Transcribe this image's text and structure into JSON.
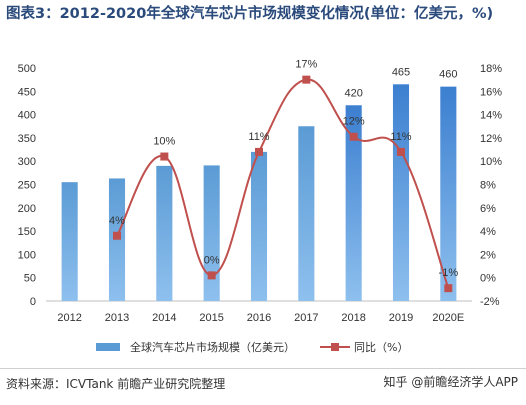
{
  "title": "图表3：2012-2020年全球汽车芯片市场规模变化情况(单位：亿美元，%)",
  "source": "资料来源：ICVTank 前瞻产业研究院整理",
  "watermark": "知乎 @前瞻经济学人APP",
  "colors": {
    "bar": "#5b9bd5",
    "bar_top": "#3c7fd0",
    "line": "#c0504d",
    "marker": "#c0504d"
  },
  "chart_data": {
    "type": "bar",
    "categories": [
      "2012",
      "2013",
      "2014",
      "2015",
      "2016",
      "2017",
      "2018",
      "2019",
      "2020E"
    ],
    "series": [
      {
        "name": "全球汽车芯片市场规模（亿美元）",
        "type": "bar",
        "axis": "left",
        "values": [
          255,
          263,
          290,
          291,
          320,
          375,
          420,
          465,
          460
        ],
        "labels": [
          "",
          "",
          "",
          "",
          "",
          "",
          "420",
          "465",
          "460"
        ]
      },
      {
        "name": "同比（%）",
        "type": "line",
        "axis": "right",
        "values": [
          null,
          3.6,
          10.4,
          0.2,
          10.8,
          17,
          12.1,
          10.8,
          -0.9
        ],
        "labels": [
          "",
          "4%",
          "10%",
          "0%",
          "11%",
          "17%",
          "12%",
          "11%",
          "-1%"
        ]
      }
    ],
    "y_left": {
      "min": 0,
      "max": 500,
      "ticks": [
        0,
        50,
        100,
        150,
        200,
        250,
        300,
        350,
        400,
        450,
        500
      ]
    },
    "y_right": {
      "min": -2,
      "max": 18,
      "ticks": [
        "-2%",
        "0%",
        "2%",
        "4%",
        "6%",
        "8%",
        "10%",
        "12%",
        "14%",
        "16%",
        "18%"
      ]
    },
    "legend": "bottom",
    "grid": false
  }
}
